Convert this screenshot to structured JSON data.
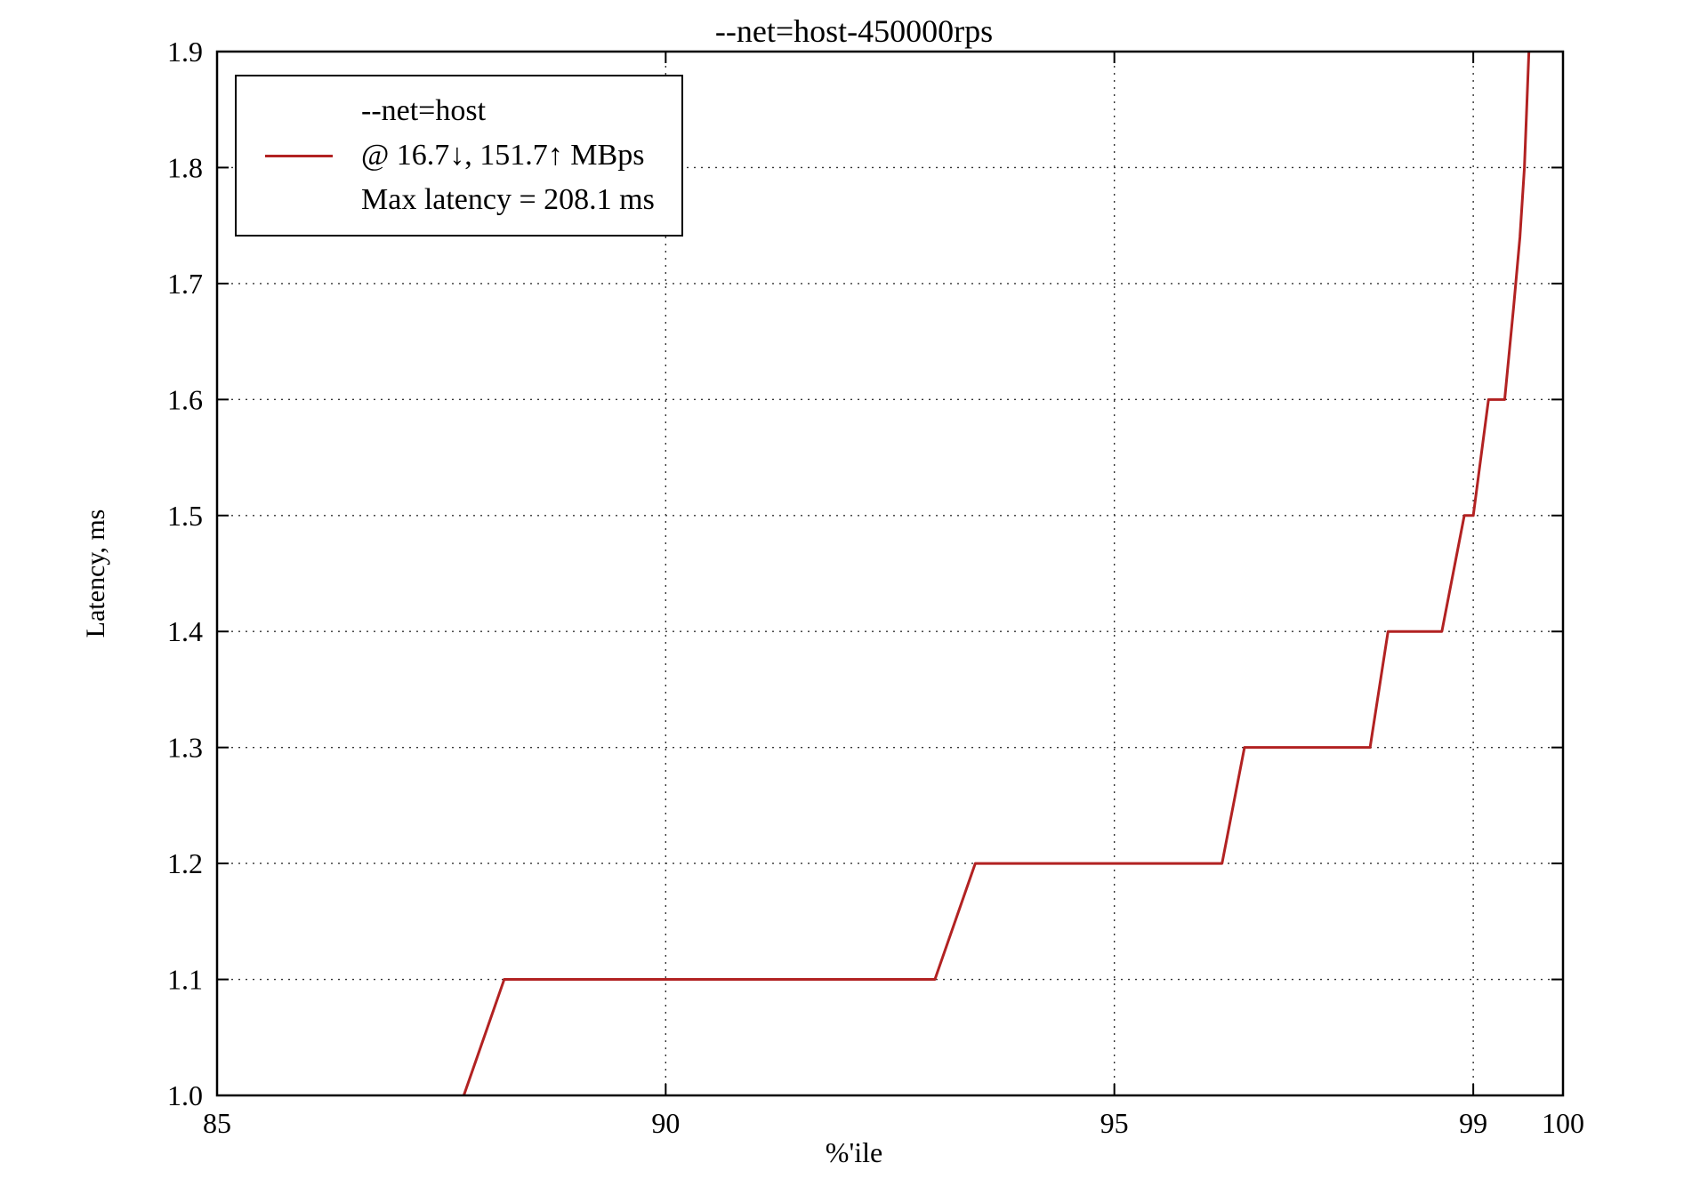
{
  "title": "--net=host-450000rps",
  "xlabel": "%'ile",
  "ylabel": "Latency, ms",
  "legend": {
    "line1": "--net=host",
    "line2": "@ 16.7↓, 151.7↑ MBps",
    "line3": "Max latency = 208.1 ms"
  },
  "colors": {
    "line": "#b22222",
    "grid": "#333333",
    "frame": "#000000",
    "background": "#ffffff"
  },
  "chart_data": {
    "type": "line",
    "title": "--net=host-450000rps",
    "xlabel": "%'ile",
    "ylabel": "Latency, ms",
    "xlim": [
      85,
      100
    ],
    "ylim": [
      1.0,
      1.9
    ],
    "grid": true,
    "legend_position": "upper-left",
    "xticks": [
      {
        "v": 85,
        "label": "85"
      },
      {
        "v": 90,
        "label": "90"
      },
      {
        "v": 95,
        "label": "95"
      },
      {
        "v": 99,
        "label": "99"
      },
      {
        "v": 100,
        "label": "100"
      }
    ],
    "yticks": [
      {
        "v": 1.0,
        "label": "1.0"
      },
      {
        "v": 1.1,
        "label": "1.1"
      },
      {
        "v": 1.2,
        "label": "1.2"
      },
      {
        "v": 1.3,
        "label": "1.3"
      },
      {
        "v": 1.4,
        "label": "1.4"
      },
      {
        "v": 1.5,
        "label": "1.5"
      },
      {
        "v": 1.6,
        "label": "1.6"
      },
      {
        "v": 1.7,
        "label": "1.7"
      },
      {
        "v": 1.8,
        "label": "1.8"
      },
      {
        "v": 1.9,
        "label": "1.9"
      }
    ],
    "x_gridlines": [
      90,
      95,
      99
    ],
    "y_gridlines": [
      1.1,
      1.2,
      1.3,
      1.4,
      1.5,
      1.6,
      1.7,
      1.8
    ],
    "series": [
      {
        "name": "--net=host @ 16.7↓, 151.7↑ MBps, Max latency = 208.1 ms",
        "color": "#b22222",
        "points": [
          [
            87.75,
            1.0
          ],
          [
            88.2,
            1.1
          ],
          [
            93.0,
            1.1
          ],
          [
            93.45,
            1.2
          ],
          [
            96.2,
            1.2
          ],
          [
            96.45,
            1.3
          ],
          [
            97.85,
            1.3
          ],
          [
            98.05,
            1.4
          ],
          [
            98.65,
            1.4
          ],
          [
            98.9,
            1.5
          ],
          [
            99.0,
            1.5
          ],
          [
            99.17,
            1.6
          ],
          [
            99.35,
            1.6
          ],
          [
            99.45,
            1.68
          ],
          [
            99.52,
            1.74
          ],
          [
            99.57,
            1.8
          ],
          [
            99.6,
            1.86
          ],
          [
            99.62,
            1.9
          ]
        ]
      }
    ]
  }
}
